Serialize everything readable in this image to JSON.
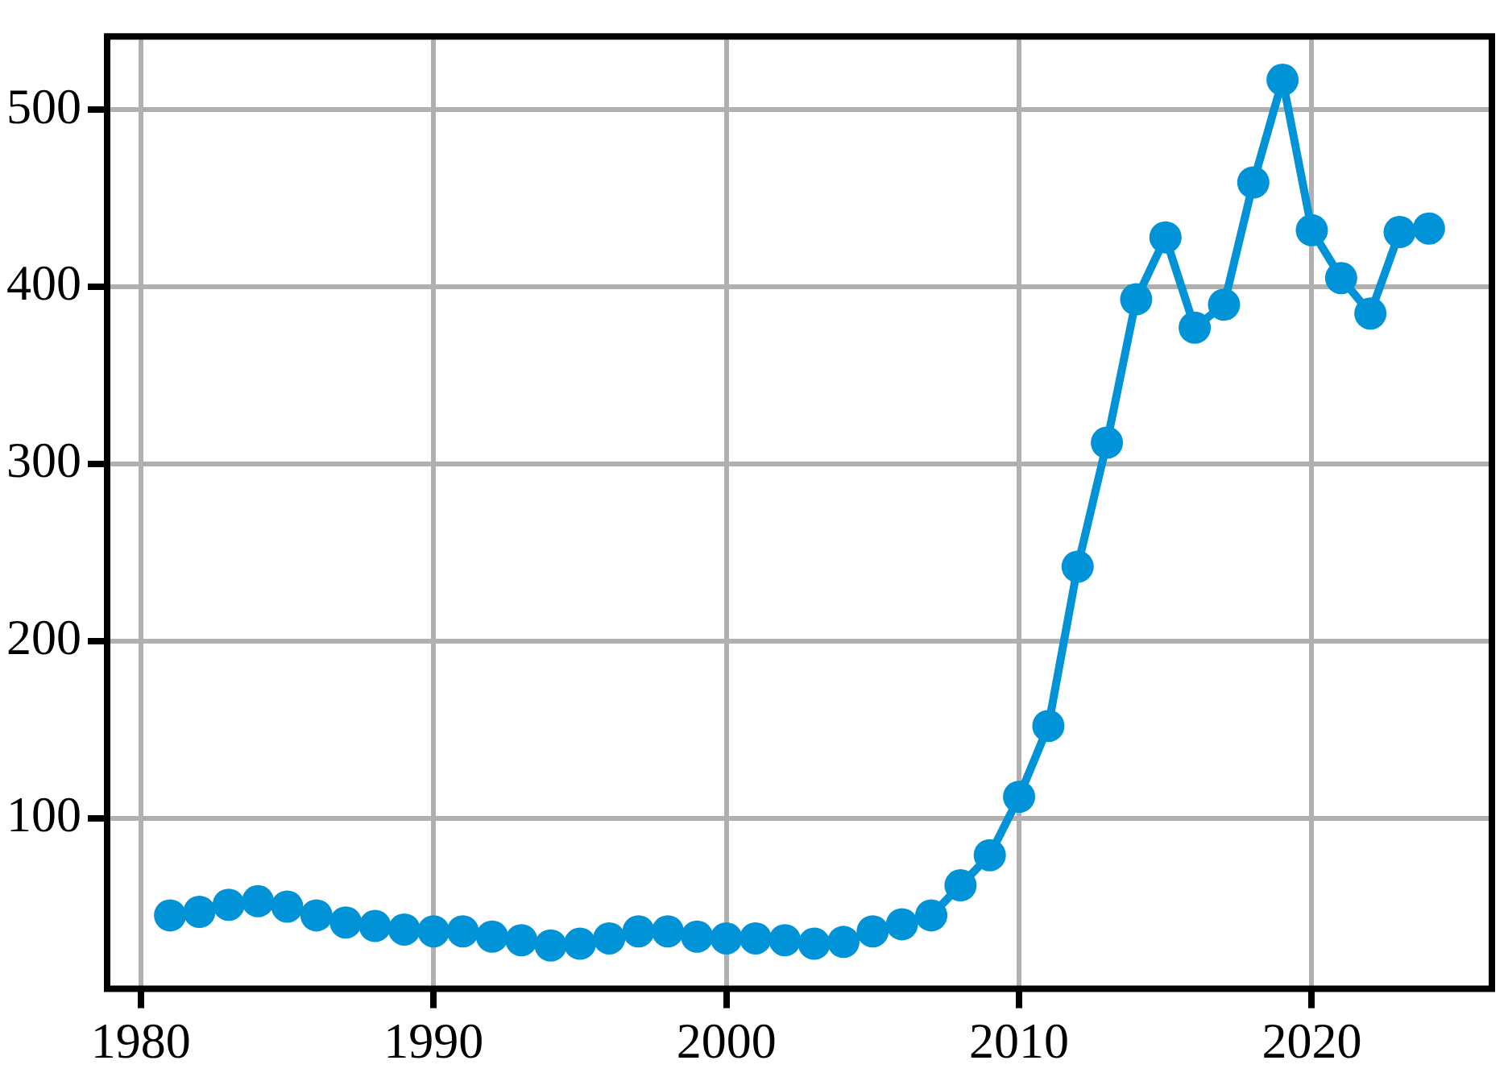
{
  "chart_data": {
    "type": "line",
    "x": [
      1981,
      1982,
      1983,
      1984,
      1985,
      1986,
      1987,
      1988,
      1989,
      1990,
      1991,
      1992,
      1993,
      1994,
      1995,
      1996,
      1997,
      1998,
      1999,
      2000,
      2001,
      2002,
      2003,
      2004,
      2005,
      2006,
      2007,
      2008,
      2009,
      2010,
      2011,
      2012,
      2013,
      2014,
      2015,
      2016,
      2017,
      2018,
      2019,
      2020,
      2021,
      2022,
      2023,
      2024
    ],
    "series": [
      {
        "color": "#0093d7",
        "values": [
          45,
          47,
          51,
          53,
          50,
          45,
          41,
          39,
          37,
          36,
          36,
          33,
          31,
          28,
          29,
          32,
          36,
          36,
          33,
          32,
          32,
          31,
          29,
          30,
          36,
          40,
          45,
          62,
          79,
          112,
          152,
          242,
          312,
          393,
          428,
          377,
          390,
          459,
          517,
          432,
          405,
          385,
          431,
          433
        ]
      }
    ],
    "xlim": [
      1978.85,
      2026.15
    ],
    "xticks": [
      1980,
      1990,
      2000,
      2010,
      2020
    ],
    "ylim": [
      3.5,
      541.5
    ],
    "yticks": [
      100,
      200,
      300,
      400,
      500
    ],
    "grid": true,
    "marker": "circle",
    "line_style": "solid"
  }
}
